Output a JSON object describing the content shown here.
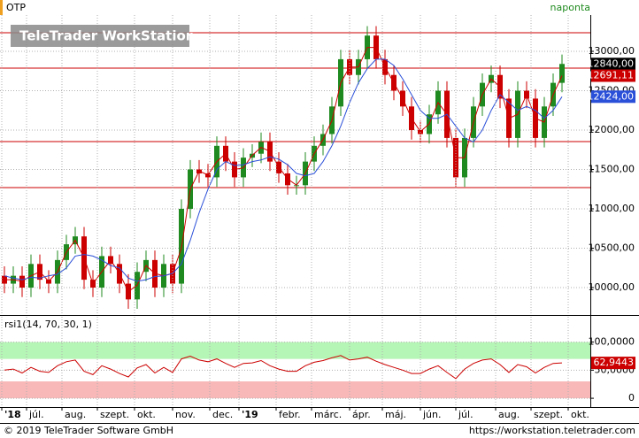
{
  "header": {
    "symbol": "OTP",
    "period": "naponta",
    "watermark": "TeleTrader WorkStation"
  },
  "chart_data": [
    {
      "type": "candlestick",
      "x": [
        0,
        1,
        2,
        3,
        4,
        5,
        6,
        7,
        8,
        9,
        10,
        11,
        12,
        13,
        14,
        15,
        16,
        17,
        18,
        19,
        20,
        21,
        22,
        23,
        24,
        25,
        26,
        27,
        28,
        29,
        30,
        31,
        32,
        33,
        34,
        35,
        36,
        37,
        38,
        39,
        40,
        41,
        42,
        43,
        44,
        45,
        46,
        47,
        48,
        49,
        50,
        51,
        52,
        53,
        54,
        55,
        56,
        57,
        58,
        59,
        60,
        61,
        62,
        63
      ],
      "open": [
        10150,
        10050,
        10150,
        10000,
        10300,
        10100,
        10050,
        10350,
        10550,
        10650,
        10100,
        10000,
        10400,
        10300,
        10050,
        9850,
        10200,
        10350,
        10000,
        10300,
        10050,
        11000,
        11500,
        11450,
        11400,
        11800,
        11600,
        11400,
        11650,
        11700,
        11850,
        11600,
        11450,
        11300,
        11300,
        11600,
        11800,
        11950,
        12300,
        12900,
        12700,
        12900,
        13200,
        12900,
        12700,
        12500,
        12300,
        12000,
        11950,
        12200,
        12500,
        11900,
        11400,
        11900,
        12300,
        12600,
        12700,
        12400,
        11900,
        12500,
        12400,
        11900,
        12300,
        12600
      ],
      "high": [
        10270,
        10270,
        10270,
        10420,
        10420,
        10220,
        10470,
        10670,
        10770,
        10770,
        10220,
        10520,
        10520,
        10420,
        10170,
        10320,
        10470,
        10470,
        10420,
        10420,
        11120,
        11620,
        11620,
        11570,
        11920,
        11920,
        11720,
        11770,
        11820,
        11970,
        11970,
        11720,
        11570,
        11420,
        11720,
        11920,
        12070,
        12420,
        13020,
        13020,
        13020,
        13320,
        13320,
        13020,
        12820,
        12620,
        12420,
        12120,
        12320,
        12620,
        12620,
        12020,
        12020,
        12420,
        12720,
        12820,
        12820,
        12520,
        12620,
        12620,
        12520,
        12420,
        12720,
        12960
      ],
      "low": [
        9930,
        9930,
        9880,
        9880,
        9980,
        9930,
        9930,
        10230,
        10430,
        9980,
        9880,
        9880,
        10180,
        9930,
        9730,
        9730,
        10080,
        9880,
        9880,
        9930,
        9930,
        10880,
        11330,
        11280,
        11280,
        11480,
        11280,
        11280,
        11530,
        11580,
        11480,
        11330,
        11180,
        11180,
        11180,
        11480,
        11680,
        11830,
        12180,
        12580,
        12580,
        12780,
        12780,
        12580,
        12380,
        12180,
        11880,
        11830,
        11830,
        12080,
        11780,
        11280,
        11280,
        11780,
        12180,
        12480,
        12280,
        11780,
        11780,
        12280,
        11780,
        11780,
        12180,
        12480
      ],
      "close": [
        10050,
        10150,
        10000,
        10300,
        10100,
        10050,
        10350,
        10550,
        10650,
        10100,
        10000,
        10400,
        10300,
        10050,
        9850,
        10200,
        10350,
        10000,
        10300,
        10050,
        11000,
        11500,
        11450,
        11400,
        11800,
        11600,
        11400,
        11650,
        11700,
        11850,
        11600,
        11450,
        11300,
        11300,
        11600,
        11800,
        11950,
        12300,
        12900,
        12700,
        12900,
        13200,
        12900,
        12700,
        12500,
        12300,
        12000,
        11950,
        12200,
        12500,
        11900,
        11400,
        11900,
        12300,
        12600,
        12700,
        12400,
        11900,
        12500,
        12400,
        11900,
        12300,
        12600,
        12840
      ],
      "up_color": "#1f8a1f",
      "down_color": "#cc0000",
      "series": [
        {
          "color": "#cc0000",
          "values": [
            10100,
            10100,
            10080,
            10150,
            10200,
            10080,
            10200,
            10450,
            10600,
            10380,
            10050,
            10200,
            10350,
            10180,
            9950,
            10030,
            10280,
            10180,
            10150,
            10180,
            10500,
            11250,
            11480,
            11430,
            11600,
            11700,
            11500,
            11520,
            11680,
            11780,
            11730,
            11530,
            11380,
            11300,
            11450,
            11700,
            11880,
            12120,
            12600,
            12800,
            12800,
            13050,
            13050,
            12800,
            12600,
            12400,
            12150,
            11980,
            12080,
            12350,
            12200,
            11650,
            11650,
            12100,
            12450,
            12650,
            12550,
            12150,
            12200,
            12450,
            12150,
            12100,
            12450,
            12691.11
          ]
        },
        {
          "color": "#2a4fd8",
          "values": [
            10150,
            10120,
            10100,
            10130,
            10120,
            10150,
            10170,
            10250,
            10400,
            10420,
            10400,
            10350,
            10280,
            10250,
            10120,
            10080,
            10100,
            10140,
            10150,
            10180,
            10300,
            10600,
            10950,
            11250,
            11500,
            11600,
            11550,
            11560,
            11600,
            11620,
            11660,
            11630,
            11560,
            11450,
            11420,
            11450,
            11600,
            11800,
            12050,
            12350,
            12600,
            12780,
            12900,
            12900,
            12820,
            12650,
            12450,
            12250,
            12150,
            12150,
            12200,
            12050,
            11900,
            11850,
            12000,
            12250,
            12450,
            12350,
            12250,
            12300,
            12250,
            12150,
            12250,
            12424
          ]
        }
      ],
      "hlines": {
        "color": "#cc0000",
        "values": [
          13236,
          12787,
          11854,
          11270
        ]
      },
      "tags": [
        {
          "value": 12840,
          "label": "12840,00",
          "color": "#000000"
        },
        {
          "value": 12691.11,
          "label": "12691,11",
          "color": "#cc0000"
        },
        {
          "value": 12424,
          "label": "12424,00",
          "color": "#2a4fd8"
        }
      ],
      "xlim": [
        -0.5,
        66.2
      ],
      "ylim": [
        9663,
        13461
      ],
      "yticks": [
        {
          "value": 10000,
          "label": "10000,00"
        },
        {
          "value": 10500,
          "label": "10500,00"
        },
        {
          "value": 11000,
          "label": "11000,00"
        },
        {
          "value": 11500,
          "label": "11500,00"
        },
        {
          "value": 12000,
          "label": "12000,00"
        },
        {
          "value": 12500,
          "label": "12500,00"
        },
        {
          "value": 13000,
          "label": "13000,00"
        }
      ],
      "grid": true
    },
    {
      "type": "line",
      "title": "rsi1(14, 70, 30, 1)",
      "x": [
        0,
        1,
        2,
        3,
        4,
        5,
        6,
        7,
        8,
        9,
        10,
        11,
        12,
        13,
        14,
        15,
        16,
        17,
        18,
        19,
        20,
        21,
        22,
        23,
        24,
        25,
        26,
        27,
        28,
        29,
        30,
        31,
        32,
        33,
        34,
        35,
        36,
        37,
        38,
        39,
        40,
        41,
        42,
        43,
        44,
        45,
        46,
        47,
        48,
        49,
        50,
        51,
        52,
        53,
        54,
        55,
        56,
        57,
        58,
        59,
        60,
        61,
        62,
        63
      ],
      "series": [
        {
          "color": "#cc0000",
          "values": [
            50,
            52,
            45,
            55,
            48,
            46,
            58,
            65,
            68,
            48,
            42,
            58,
            52,
            44,
            38,
            54,
            60,
            45,
            55,
            46,
            70,
            75,
            68,
            65,
            70,
            62,
            55,
            62,
            63,
            67,
            58,
            52,
            48,
            48,
            58,
            64,
            67,
            72,
            76,
            68,
            70,
            73,
            66,
            60,
            55,
            50,
            44,
            44,
            52,
            58,
            46,
            35,
            52,
            62,
            68,
            70,
            60,
            46,
            60,
            56,
            45,
            55,
            62,
            62.9443
          ]
        }
      ],
      "tags": [
        {
          "value": 62.9443,
          "label": "62,9443",
          "color": "#cc0000"
        }
      ],
      "bands": [
        {
          "from": 70,
          "to": 100,
          "color": "#b5f5b5"
        },
        {
          "from": 0,
          "to": 30,
          "color": "#f8b8b8"
        }
      ],
      "xlim": [
        -0.5,
        66.2
      ],
      "xticks": [
        {
          "value": -0.3,
          "label": "'18"
        },
        {
          "value": 2.5,
          "label": "júl."
        },
        {
          "value": 6.5,
          "label": "aug."
        },
        {
          "value": 10.5,
          "label": "szept."
        },
        {
          "value": 14.7,
          "label": "okt."
        },
        {
          "value": 19,
          "label": "nov."
        },
        {
          "value": 23.2,
          "label": "dec."
        },
        {
          "value": 26.5,
          "label": "'19"
        },
        {
          "value": 30.7,
          "label": "febr."
        },
        {
          "value": 34.7,
          "label": "márc."
        },
        {
          "value": 39,
          "label": "ápr."
        },
        {
          "value": 42.7,
          "label": "máj."
        },
        {
          "value": 47,
          "label": "jún."
        },
        {
          "value": 51,
          "label": "júl."
        },
        {
          "value": 55.5,
          "label": "aug."
        },
        {
          "value": 59.5,
          "label": "szept."
        },
        {
          "value": 63.7,
          "label": "okt."
        }
      ],
      "ylim": [
        -15.6,
        145
      ],
      "yticks": [
        0,
        {
          "value": 50,
          "label": "50,0000"
        },
        {
          "value": 100,
          "label": "100,0000"
        }
      ],
      "grid": true
    }
  ],
  "footer": {
    "copyright": "© 2019 TeleTrader Software GmbH",
    "url": "https://workstation.teletrader.com"
  }
}
